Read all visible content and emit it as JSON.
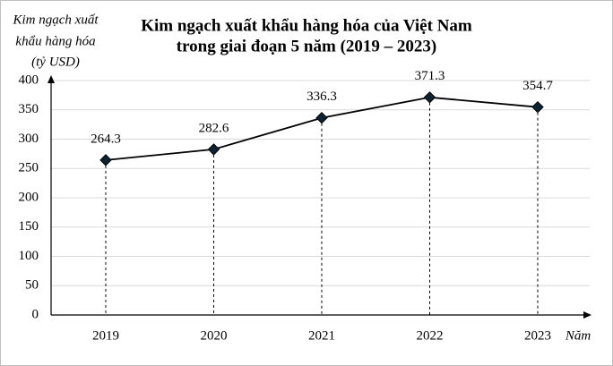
{
  "chart_data": {
    "type": "line",
    "title": [
      "Kim ngạch xuất khẩu hàng hóa của Việt Nam",
      "trong giai đoạn 5 năm (2019 – 2023)"
    ],
    "y_label": [
      "Kim ngạch xuất",
      "khẩu hàng hóa",
      "(tỷ USD)"
    ],
    "x_label": "Năm",
    "categories": [
      "2019",
      "2020",
      "2021",
      "2022",
      "2023"
    ],
    "values": [
      264.3,
      282.6,
      336.3,
      371.3,
      354.7
    ],
    "color": "#000000",
    "ylim": [
      0,
      400
    ],
    "yticks": [
      0,
      50,
      100,
      150,
      200,
      250,
      300,
      350,
      400
    ],
    "grid": true
  }
}
